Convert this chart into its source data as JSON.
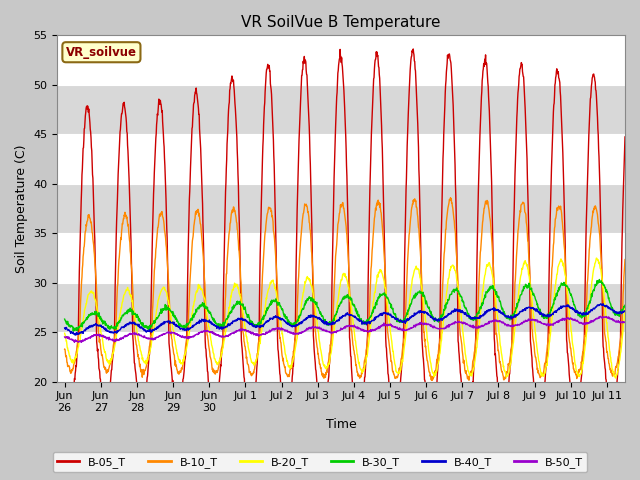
{
  "title": "VR SoilVue B Temperature",
  "ylabel": "Soil Temperature (C)",
  "xlabel": "Time",
  "ylim": [
    20,
    55
  ],
  "yticks": [
    20,
    25,
    30,
    35,
    40,
    45,
    50,
    55
  ],
  "plot_bg": "#e8e8e8",
  "legend_label": "VR_soilvue",
  "legend_bg": "#ffffcc",
  "legend_border": "#8b6914",
  "legend_text_color": "#8b0000",
  "series": [
    {
      "label": "B-05_T",
      "color": "#cc0000"
    },
    {
      "label": "B-10_T",
      "color": "#ff8800"
    },
    {
      "label": "B-20_T",
      "color": "#ffff00"
    },
    {
      "label": "B-30_T",
      "color": "#00cc00"
    },
    {
      "label": "B-40_T",
      "color": "#0000cc"
    },
    {
      "label": "B-50_T",
      "color": "#9900cc"
    }
  ],
  "n_days": 15.5,
  "samples_per_day": 96,
  "xtick_positions": [
    0,
    1,
    2,
    3,
    4,
    5,
    6,
    7,
    8,
    9,
    10,
    11,
    12,
    13,
    14,
    15
  ],
  "xtick_labels": [
    "Jun\n26",
    "Jun\n27",
    "Jun\n28",
    "Jun\n29",
    "Jun\n30",
    "Jul 1",
    "Jul 2",
    "Jul 3",
    "Jul 4",
    "Jul 5",
    "Jul 6",
    "Jul 7",
    "Jul 8",
    "Jul 9",
    "Jul 10",
    "Jul 11"
  ],
  "xlim": [
    -0.2,
    15.5
  ],
  "figsize": [
    6.4,
    4.8
  ],
  "dpi": 100
}
